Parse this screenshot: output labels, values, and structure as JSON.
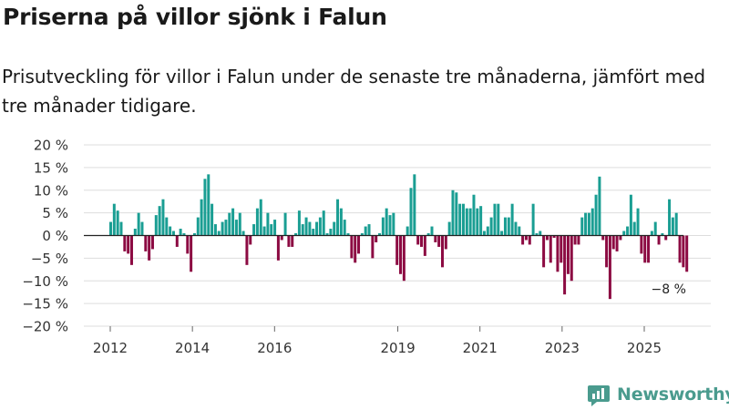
{
  "title": "Priserna på villor sjönk i Falun",
  "subtitle": "Prisutveckling för villor i Falun under de senaste tre månaderna, jämfört med tre månader tidigare.",
  "brand": "Newsworthy",
  "colors": {
    "positive": "#1a9e93",
    "negative": "#8c0a42",
    "grid": "#dddddd",
    "brand": "#4a9b8e"
  },
  "chart_data": {
    "type": "bar",
    "title": "Priserna på villor sjönk i Falun",
    "ylabel": "",
    "xlabel": "",
    "ylim": [
      -20,
      20
    ],
    "yticks": [
      20,
      15,
      10,
      5,
      0,
      -5,
      -10,
      -15,
      -20
    ],
    "ytick_labels": [
      "20 %",
      "15 %",
      "10 %",
      "5 %",
      "0 %",
      "−5 %",
      "−10 %",
      "−15 %",
      "−20 %"
    ],
    "xticks": [
      2012,
      2014,
      2016,
      2019,
      2021,
      2023,
      2025
    ],
    "x_start": 2012,
    "months_per_bar": 1,
    "annotation": "−8 %",
    "values": [
      3,
      7,
      5.5,
      3,
      -3.5,
      -4,
      -6.5,
      1.5,
      5,
      3,
      -3.5,
      -5.5,
      -3,
      4.5,
      6.5,
      8,
      4,
      2,
      1,
      -2.5,
      1.5,
      0.5,
      -4,
      -8,
      0.5,
      4,
      8,
      12.5,
      13.5,
      7,
      2.5,
      1,
      3,
      3.5,
      5,
      6,
      3.5,
      5,
      1,
      -6.5,
      -2,
      2.5,
      6,
      8,
      2,
      5,
      2.5,
      3.5,
      -5.5,
      -1,
      5,
      -2.5,
      -2.5,
      0.5,
      5.5,
      2.5,
      4,
      3,
      1.5,
      3,
      4,
      5.5,
      0.5,
      1.5,
      3,
      8,
      6,
      3.5,
      0.5,
      -5,
      -6,
      -4,
      0.5,
      2,
      2.5,
      -5,
      -1.5,
      0.5,
      4,
      6,
      4.5,
      5,
      -6.5,
      -8.5,
      -10,
      2,
      10.5,
      13.5,
      -2,
      -2.5,
      -4.5,
      0.5,
      2,
      -1.5,
      -2.5,
      -7,
      -3,
      3,
      10,
      9.5,
      7,
      7,
      6,
      6,
      9,
      6,
      6.5,
      1,
      2,
      4,
      7,
      7,
      1,
      4,
      4,
      7,
      3,
      2,
      -2,
      -1,
      -2,
      7,
      0.5,
      1,
      -7,
      -1,
      -6,
      -0.5,
      -8,
      -6,
      -13,
      -8.5,
      -10,
      -2,
      -2,
      4,
      5,
      5,
      6,
      9,
      13,
      -1,
      -7,
      -14,
      -3,
      -3.5,
      -1,
      1,
      2,
      9,
      3,
      6,
      -4,
      -6,
      -6,
      1,
      3,
      -2,
      0.5,
      -1,
      8,
      4,
      5,
      -6,
      -7,
      -8
    ]
  }
}
